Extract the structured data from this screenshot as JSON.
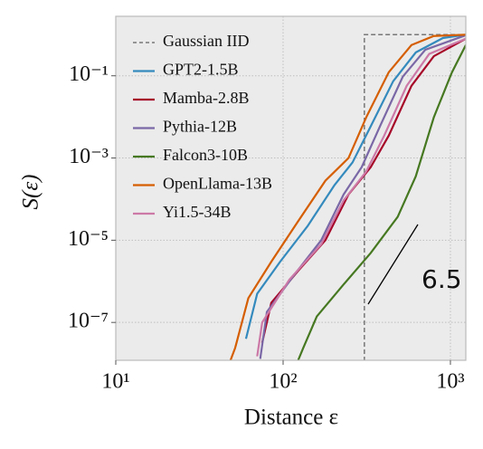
{
  "chart_data": {
    "type": "line",
    "xlabel": "Distance ε",
    "ylabel": "S(ε)",
    "xscale": "log",
    "yscale": "log",
    "grid": true,
    "legend": "upper left",
    "xlim": [
      10,
      1236
    ],
    "ylim": [
      1.2e-08,
      2.8
    ],
    "xticks": [
      {
        "value": 10,
        "label": "10¹"
      },
      {
        "value": 100,
        "label": "10²"
      },
      {
        "value": 1000,
        "label": "10³"
      }
    ],
    "yticks": [
      {
        "value": 0.1,
        "label": "10⁻¹"
      },
      {
        "value": 0.001,
        "label": "10⁻³"
      },
      {
        "value": 1e-05,
        "label": "10⁻⁵"
      },
      {
        "value": 1e-07,
        "label": "10⁻⁷"
      }
    ],
    "annotation": "6.5",
    "series": [
      {
        "name": "Gaussian IID",
        "color": "#777777",
        "linestyle": "dashed",
        "x": [
          306,
          306,
          1236
        ],
        "values": [
          1e-09,
          1,
          1
        ]
      },
      {
        "name": "GPT2-1.5B",
        "color": "#348abd",
        "x": [
          60,
          70,
          96,
          140,
          203,
          260,
          334,
          455,
          621,
          902,
          1236
        ],
        "values": [
          4e-08,
          5e-07,
          3e-06,
          2.2e-05,
          0.00022,
          0.00078,
          0.0059,
          0.074,
          0.37,
          0.83,
          1
        ]
      },
      {
        "name": "Mamba-2.8B",
        "color": "#a60628",
        "x": [
          75,
          85,
          123,
          179,
          246,
          334,
          428,
          585,
          796,
          1236
        ],
        "values": [
          3.2e-08,
          3e-07,
          1.8e-06,
          1e-05,
          0.00013,
          0.0006,
          0.0035,
          0.057,
          0.3,
          0.8
        ]
      },
      {
        "name": "Pythia-12B",
        "color": "#7a68a6",
        "x": [
          73,
          80,
          116,
          169,
          230,
          295,
          380,
          519,
          708,
          1236
        ],
        "values": [
          1.3e-08,
          1.8e-07,
          1.4e-06,
          1e-05,
          0.00013,
          0.0006,
          0.006,
          0.095,
          0.43,
          0.97
        ]
      },
      {
        "name": "Falcon3-10B",
        "color": "#467821",
        "x": [
          123,
          132,
          159,
          230,
          334,
          484,
          621,
          796,
          1020,
          1236
        ],
        "values": [
          1.2e-08,
          2.4e-08,
          1.4e-07,
          8.4e-07,
          4.9e-06,
          3.7e-05,
          0.00036,
          0.0098,
          0.12,
          0.56
        ]
      },
      {
        "name": "OpenLlama-13B",
        "color": "#d55e00",
        "x": [
          48.5,
          51.7,
          62,
          85,
          123,
          179,
          246,
          314,
          428,
          585,
          796,
          1236
        ],
        "values": [
          1.2e-08,
          2.4e-08,
          3.9e-07,
          3e-06,
          2.9e-05,
          0.00028,
          0.001,
          0.0098,
          0.122,
          0.56,
          0.93,
          1
        ]
      },
      {
        "name": "Yi1.5-34B",
        "color": "#cc79a7",
        "x": [
          70,
          75,
          109,
          169,
          230,
          314,
          402,
          548,
          747,
          1236
        ],
        "values": [
          1.5e-08,
          1e-07,
          1.1e-06,
          8e-06,
          9.3e-05,
          0.00047,
          0.0035,
          0.057,
          0.34,
          0.8
        ]
      }
    ]
  }
}
